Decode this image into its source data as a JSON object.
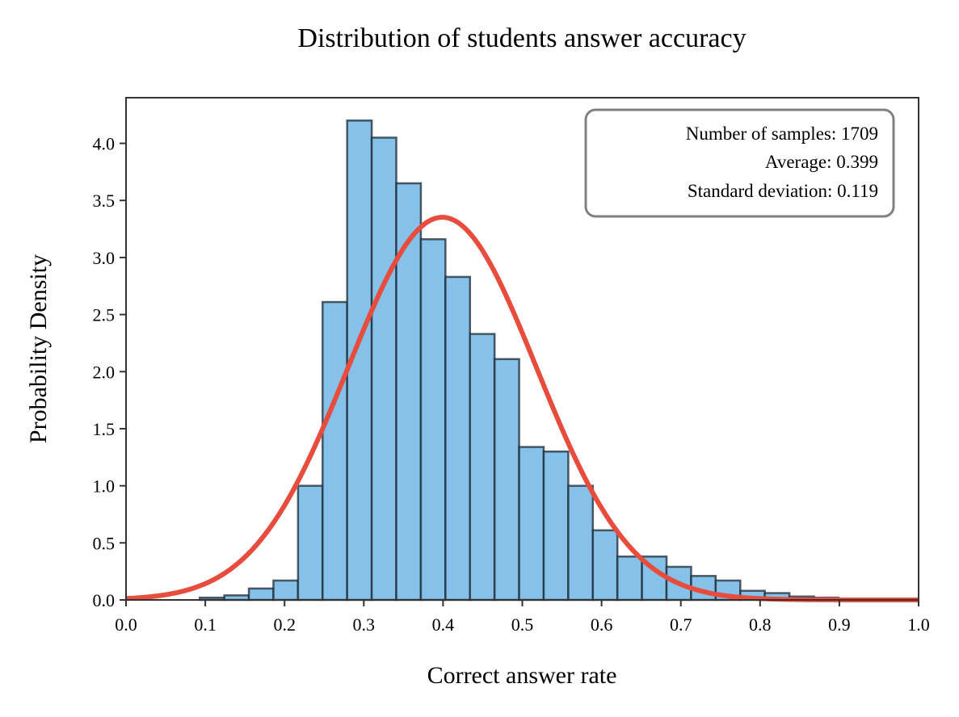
{
  "chart_data": {
    "type": "bar",
    "title": "Distribution of students answer accuracy",
    "xlabel": "Correct answer rate",
    "ylabel": "Probability Density",
    "xlim": [
      0.0,
      1.0
    ],
    "ylim": [
      0.0,
      4.4
    ],
    "xticks": [
      "0.0",
      "0.1",
      "0.2",
      "0.3",
      "0.4",
      "0.5",
      "0.6",
      "0.7",
      "0.8",
      "0.9",
      "1.0"
    ],
    "yticks": [
      "0.0",
      "0.5",
      "1.0",
      "1.5",
      "2.0",
      "2.5",
      "3.0",
      "3.5",
      "4.0"
    ],
    "bin_width": 0.031,
    "bins": [
      {
        "x0": 0.093,
        "value": 0.02
      },
      {
        "x0": 0.124,
        "value": 0.04
      },
      {
        "x0": 0.155,
        "value": 0.1
      },
      {
        "x0": 0.186,
        "value": 0.17
      },
      {
        "x0": 0.217,
        "value": 1.0
      },
      {
        "x0": 0.248,
        "value": 2.61
      },
      {
        "x0": 0.279,
        "value": 4.2
      },
      {
        "x0": 0.31,
        "value": 4.05
      },
      {
        "x0": 0.341,
        "value": 3.65
      },
      {
        "x0": 0.372,
        "value": 3.16
      },
      {
        "x0": 0.403,
        "value": 2.83
      },
      {
        "x0": 0.434,
        "value": 2.33
      },
      {
        "x0": 0.465,
        "value": 2.11
      },
      {
        "x0": 0.496,
        "value": 1.34
      },
      {
        "x0": 0.527,
        "value": 1.3
      },
      {
        "x0": 0.558,
        "value": 1.0
      },
      {
        "x0": 0.589,
        "value": 0.61
      },
      {
        "x0": 0.62,
        "value": 0.38
      },
      {
        "x0": 0.651,
        "value": 0.38
      },
      {
        "x0": 0.682,
        "value": 0.29
      },
      {
        "x0": 0.713,
        "value": 0.21
      },
      {
        "x0": 0.744,
        "value": 0.17
      },
      {
        "x0": 0.775,
        "value": 0.08
      },
      {
        "x0": 0.806,
        "value": 0.06
      },
      {
        "x0": 0.837,
        "value": 0.03
      },
      {
        "x0": 0.868,
        "value": 0.02
      }
    ],
    "normal_fit": {
      "mean": 0.399,
      "std": 0.119
    },
    "stats_box": {
      "lines": [
        "Number of samples: 1709",
        "Average: 0.399",
        "Standard deviation: 0.119"
      ],
      "placement": "top-right"
    },
    "colors": {
      "bar_fill": "#85c1e9",
      "bar_edge": "#1c2833",
      "curve": "#e74c3c",
      "box_edge": "#808080"
    },
    "grid": false
  }
}
